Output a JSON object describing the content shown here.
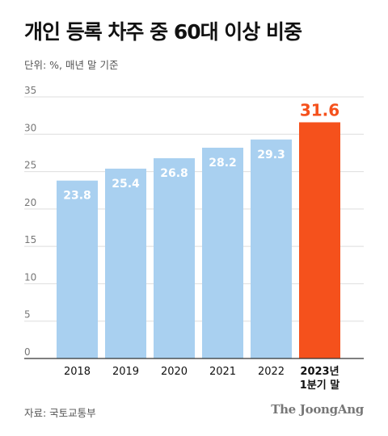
{
  "header": {
    "title": "개인 등록 차주 중 60대 이상 비중",
    "unit": "단위: %, 매년 말 기준"
  },
  "footer": {
    "source": "자료: 국토교통부",
    "publisher_logo": "The JoongAng"
  },
  "colors": {
    "bar": "#a9d0f0",
    "highlight_bar": "#f5511c",
    "highlight_label": "#f5511c",
    "gridline": "#dddddd",
    "tick_label": "#777777"
  },
  "chart_data": {
    "type": "bar",
    "title": "개인 등록 차주 중 60대 이상 비중",
    "unit_note": "단위: %, 매년 말 기준",
    "categories": [
      "2018",
      "2019",
      "2020",
      "2021",
      "2022",
      [
        "2023년",
        "1분기 말"
      ]
    ],
    "values": [
      23.8,
      25.4,
      26.8,
      28.2,
      29.3,
      31.6
    ],
    "value_labels": [
      "23.8",
      "25.4",
      "26.8",
      "28.2",
      "29.3",
      "31.6"
    ],
    "highlight_index": 5,
    "ylim": [
      0,
      35
    ],
    "yticks": [
      0,
      5,
      10,
      15,
      20,
      25,
      30,
      35
    ],
    "grid": true,
    "legend": "none"
  }
}
